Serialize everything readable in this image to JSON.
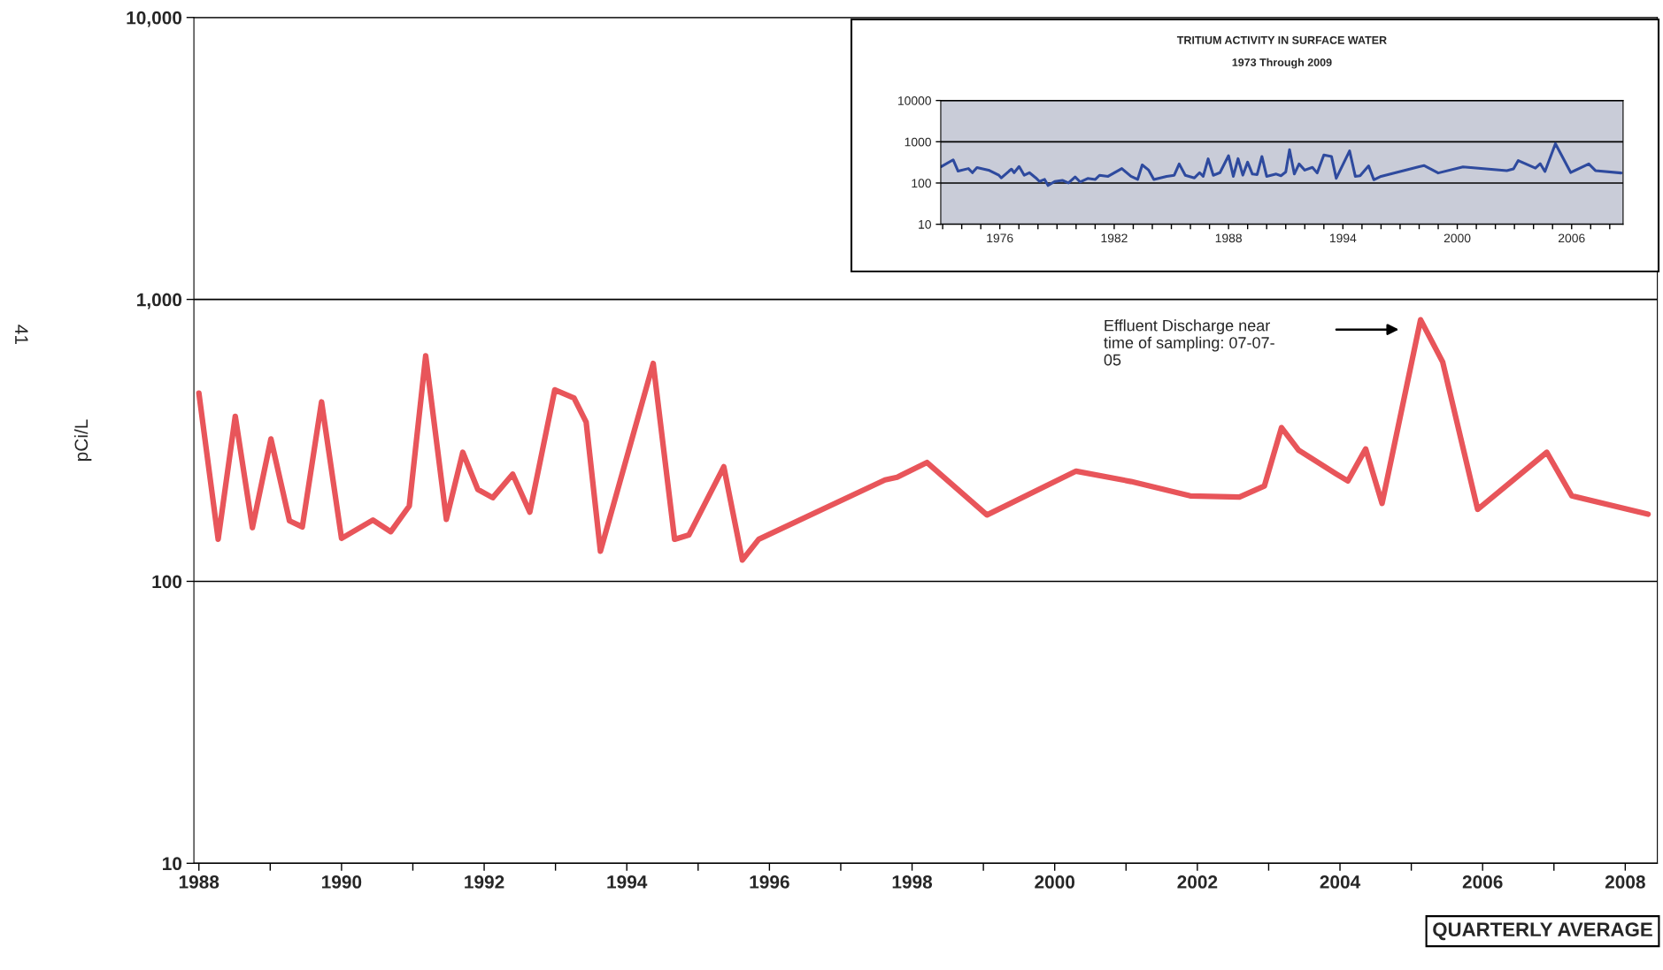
{
  "chart_data": [
    {
      "type": "line",
      "ylabel": "pCi/L",
      "log": true,
      "grid": "y",
      "xlim": [
        1987.93,
        2008.45
      ],
      "ylim": [
        10,
        10000
      ],
      "yticks": [
        {
          "value": 10,
          "label": "10"
        },
        {
          "value": 100,
          "label": "100"
        },
        {
          "value": 1000,
          "label": "1,000"
        },
        {
          "value": 10000,
          "label": "10,000"
        }
      ],
      "xticks": [
        1988,
        {
          "value": 1989,
          "label": null
        },
        1990,
        {
          "value": 1991,
          "label": null
        },
        1992,
        {
          "value": 1993,
          "label": null
        },
        1994,
        {
          "value": 1995,
          "label": null
        },
        1996,
        {
          "value": 1997,
          "label": null
        },
        1998,
        {
          "value": 1999,
          "label": null
        },
        2000,
        {
          "value": 2001,
          "label": null
        },
        2002,
        {
          "value": 2003,
          "label": null
        },
        2004,
        {
          "value": 2005,
          "label": null
        },
        2006,
        {
          "value": 2007,
          "label": null
        },
        2008
      ],
      "series": [
        {
          "color": "#e8555a",
          "x": [
            1988.0,
            1988.27,
            1988.51,
            1988.75,
            1989.01,
            1989.27,
            1989.45,
            1989.72,
            1990.0,
            1990.44,
            1990.69,
            1990.95,
            1991.18,
            1991.47,
            1991.7,
            1991.91,
            1992.12,
            1992.4,
            1992.64,
            1992.99,
            1993.26,
            1993.43,
            1993.63,
            1994.37,
            1994.67,
            1994.87,
            1995.36,
            1995.62,
            1995.85,
            1997.62,
            1997.79,
            1998.21,
            1999.05,
            2000.3,
            2001.07,
            2001.9,
            2002.59,
            2002.94,
            2003.18,
            2003.42,
            2003.94,
            2004.11,
            2004.36,
            2004.59,
            2005.13,
            2005.44,
            2005.93,
            2006.9,
            2007.25,
            2008.32
          ],
          "values": [
            465,
            141,
            385,
            155,
            320,
            164,
            156,
            433,
            142,
            165,
            150,
            185,
            631,
            166,
            287,
            212,
            198,
            240,
            176,
            478,
            447,
            367,
            128,
            593,
            141,
            146,
            255,
            119,
            141,
            229,
            234,
            264,
            172,
            246,
            226,
            201,
            199,
            218,
            351,
            292,
            241,
            227,
            295,
            189,
            847,
            600,
            180,
            287,
            201,
            173
          ]
        }
      ],
      "annotations": [
        "Effluent Discharge near\ntime of sampling: 07-07-\n05",
        "QUARTERLY AVERAGE",
        "41"
      ]
    },
    {
      "type": "line",
      "title": "TRITIUM ACTIVITY IN SURFACE WATER",
      "subtitle": "1973 Through 2009",
      "log": true,
      "grid": "y",
      "xlim": [
        1972.9,
        2008.7
      ],
      "ylim": [
        10,
        10000
      ],
      "yticks": [
        10,
        100,
        1000,
        10000
      ],
      "xticks": [
        {
          "value": 1973,
          "label": null
        },
        {
          "value": 1974,
          "label": null
        },
        {
          "value": 1975,
          "label": null
        },
        1976,
        {
          "value": 1977,
          "label": null
        },
        {
          "value": 1978,
          "label": null
        },
        {
          "value": 1979,
          "label": null
        },
        {
          "value": 1980,
          "label": null
        },
        {
          "value": 1981,
          "label": null
        },
        1982,
        {
          "value": 1983,
          "label": null
        },
        {
          "value": 1984,
          "label": null
        },
        {
          "value": 1985,
          "label": null
        },
        {
          "value": 1986,
          "label": null
        },
        {
          "value": 1987,
          "label": null
        },
        1988,
        {
          "value": 1989,
          "label": null
        },
        {
          "value": 1990,
          "label": null
        },
        {
          "value": 1991,
          "label": null
        },
        {
          "value": 1992,
          "label": null
        },
        {
          "value": 1993,
          "label": null
        },
        1994,
        {
          "value": 1995,
          "label": null
        },
        {
          "value": 1996,
          "label": null
        },
        {
          "value": 1997,
          "label": null
        },
        {
          "value": 1998,
          "label": null
        },
        {
          "value": 1999,
          "label": null
        },
        2000,
        {
          "value": 2001,
          "label": null
        },
        {
          "value": 2002,
          "label": null
        },
        {
          "value": 2003,
          "label": null
        },
        {
          "value": 2004,
          "label": null
        },
        {
          "value": 2005,
          "label": null
        },
        2006,
        {
          "value": 2007,
          "label": null
        },
        {
          "value": 2008,
          "label": null
        }
      ],
      "series": [
        {
          "color": "#2e4a9e",
          "x": [
            1972.93,
            1973.55,
            1973.81,
            1974.35,
            1974.56,
            1974.8,
            1975.41,
            1975.95,
            1976.08,
            1976.48,
            1976.61,
            1976.75,
            1977.01,
            1977.28,
            1977.55,
            1977.89,
            1978.08,
            1978.35,
            1978.53,
            1978.88,
            1979.28,
            1979.6,
            1979.95,
            1980.21,
            1980.61,
            1981.01,
            1981.23,
            1981.68,
            1982.4,
            1982.88,
            1983.23,
            1983.47,
            1983.81,
            1984.08,
            1984.75,
            1985.15,
            1985.41,
            1985.73,
            1986.21,
            1986.48,
            1986.67,
            1986.93,
            1987.2,
            1987.55,
            1988.0,
            1988.25,
            1988.5,
            1988.75,
            1989.0,
            1989.25,
            1989.5,
            1989.75,
            1990.0,
            1990.5,
            1990.75,
            1991.0,
            1991.2,
            1991.45,
            1991.7,
            1992.0,
            1992.4,
            1992.65,
            1993.0,
            1993.4,
            1993.65,
            1994.35,
            1994.65,
            1994.9,
            1995.35,
            1995.62,
            1996.0,
            1998.0,
            1998.25,
            1999.0,
            2000.3,
            2002.6,
            2002.95,
            2003.2,
            2004.1,
            2004.35,
            2004.6,
            2005.15,
            2005.95,
            2006.9,
            2007.25,
            2008.6
          ],
          "values": [
            251,
            365,
            194,
            224,
            178,
            237,
            205,
            154,
            133,
            194,
            217,
            178,
            251,
            154,
            178,
            133,
            109,
            122,
            87,
            109,
            116,
            100,
            141,
            106,
            129,
            122,
            154,
            145,
            224,
            145,
            122,
            274,
            205,
            122,
            145,
            154,
            290,
            154,
            133,
            178,
            145,
            386,
            154,
            178,
            460,
            145,
            390,
            155,
            320,
            165,
            160,
            440,
            145,
            165,
            150,
            185,
            640,
            165,
            290,
            205,
            240,
            175,
            480,
            440,
            130,
            600,
            145,
            150,
            260,
            120,
            145,
            250,
            265,
            175,
            245,
            200,
            220,
            350,
            230,
            295,
            190,
            900,
            180,
            290,
            200,
            175
          ]
        }
      ]
    }
  ]
}
